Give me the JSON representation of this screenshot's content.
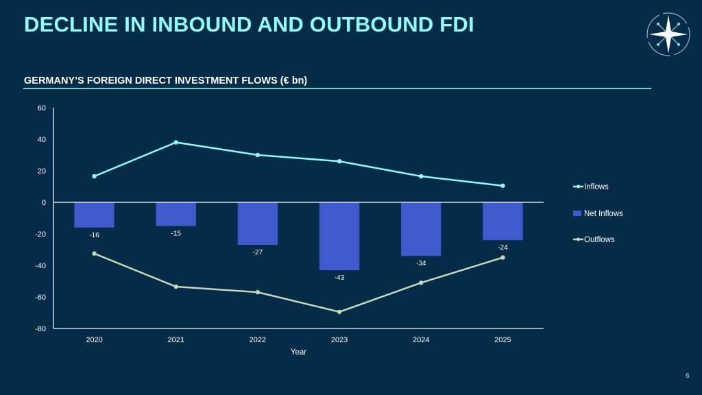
{
  "slide": {
    "title": "DECLINE IN INBOUND AND OUTBOUND FDI",
    "subtitle": "GERMANY’S FOREIGN DIRECT INVESTMENT FLOWS (€ bn)",
    "page_number": "6",
    "logo_icon": "compass-star-icon"
  },
  "colors": {
    "background": "#042b48",
    "title": "#8ffdfb",
    "inflows": "#8ffdfb",
    "net_inflows": "#3d5bcc",
    "outflows": "#c6d8b8",
    "axis": "#d8dde2",
    "text": "#ffffff"
  },
  "chart_data": {
    "type": "bar",
    "title": "GERMANY’S FOREIGN DIRECT INVESTMENT FLOWS (€ bn)",
    "xlabel": "Year",
    "ylabel": "",
    "categories": [
      "2020",
      "2021",
      "2022",
      "2023",
      "2024",
      "2025"
    ],
    "ylim": [
      -80,
      60
    ],
    "yticks": [
      60,
      40,
      20,
      0,
      -20,
      -40,
      -60,
      -80
    ],
    "grid": false,
    "legend_position": "right",
    "series": [
      {
        "name": "Inflows",
        "type": "line",
        "values": [
          16.5,
          38,
          30,
          26,
          16.5,
          10.5
        ]
      },
      {
        "name": "Net Inflows",
        "type": "bar",
        "values": [
          -16,
          -15,
          -27,
          -43,
          -34,
          -24
        ],
        "data_labels": [
          "-16",
          "-15",
          "-27",
          "-43",
          "-34",
          "-24"
        ]
      },
      {
        "name": "Outflows",
        "type": "line",
        "values": [
          -32.5,
          -53.5,
          -57,
          -69.5,
          -51,
          -35
        ]
      }
    ]
  }
}
